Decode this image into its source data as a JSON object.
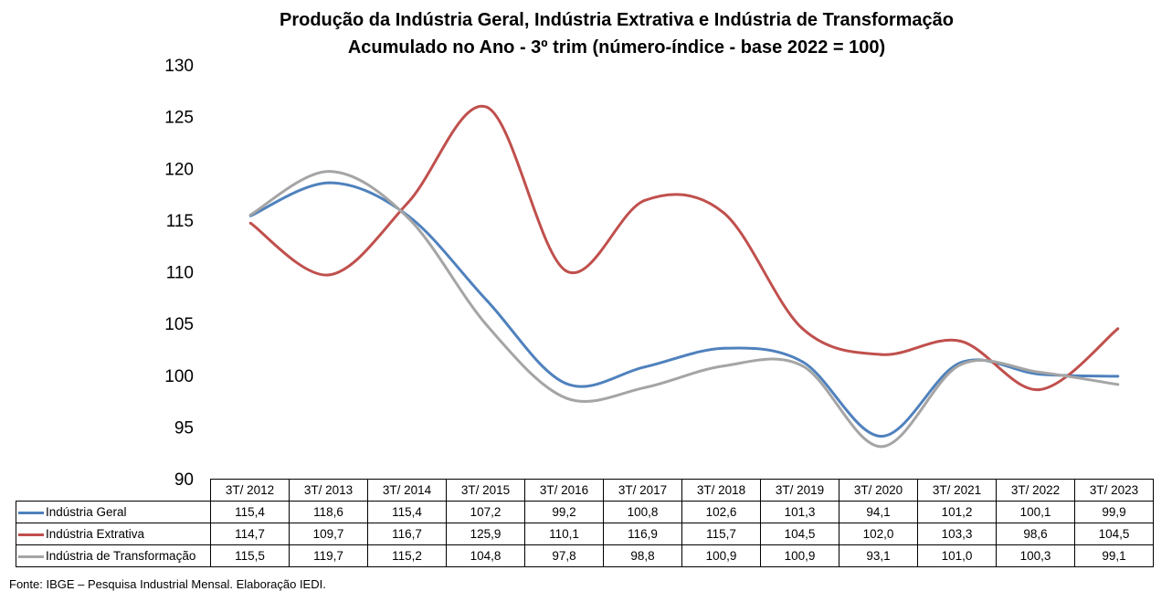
{
  "title_line1": "Produção da Indústria Geral, Indústria Extrativa e Indústria de Transformação",
  "title_line2": "Acumulado no Ano - 3º trim (número-índice - base 2022 = 100)",
  "source": "Fonte: IBGE – Pesquisa Industrial Mensal. Elaboração IEDI.",
  "chart_data": {
    "type": "line",
    "categories": [
      "3T/ 2012",
      "3T/ 2013",
      "3T/ 2014",
      "3T/ 2015",
      "3T/ 2016",
      "3T/ 2017",
      "3T/ 2018",
      "3T/ 2019",
      "3T/ 2020",
      "3T/ 2021",
      "3T/ 2022",
      "3T/ 2023"
    ],
    "ylim": [
      90,
      130
    ],
    "yticks": [
      "90",
      "95",
      "100",
      "105",
      "110",
      "115",
      "120",
      "125",
      "130"
    ],
    "grid": false,
    "legend": "data-table",
    "series": [
      {
        "name": "Indústria Geral",
        "color": "#4f81bd",
        "values": [
          115.4,
          118.6,
          115.4,
          107.2,
          99.2,
          100.8,
          102.6,
          101.3,
          94.1,
          101.2,
          100.1,
          99.9
        ],
        "labels": [
          "115,4",
          "118,6",
          "115,4",
          "107,2",
          "99,2",
          "100,8",
          "102,6",
          "101,3",
          "94,1",
          "101,2",
          "100,1",
          "99,9"
        ]
      },
      {
        "name": "Indústria Extrativa",
        "color": "#c0504d",
        "values": [
          114.7,
          109.7,
          116.7,
          125.9,
          110.1,
          116.9,
          115.7,
          104.5,
          102.0,
          103.3,
          98.6,
          104.5
        ],
        "labels": [
          "114,7",
          "109,7",
          "116,7",
          "125,9",
          "110,1",
          "116,9",
          "115,7",
          "104,5",
          "102,0",
          "103,3",
          "98,6",
          "104,5"
        ]
      },
      {
        "name": "Indústria de Transformação",
        "color": "#a5a5a5",
        "values": [
          115.5,
          119.7,
          115.2,
          104.8,
          97.8,
          98.8,
          100.9,
          100.9,
          93.1,
          101.0,
          100.3,
          99.1
        ],
        "labels": [
          "115,5",
          "119,7",
          "115,2",
          "104,8",
          "97,8",
          "98,8",
          "100,9",
          "100,9",
          "93,1",
          "101,0",
          "100,3",
          "99,1"
        ]
      }
    ]
  }
}
